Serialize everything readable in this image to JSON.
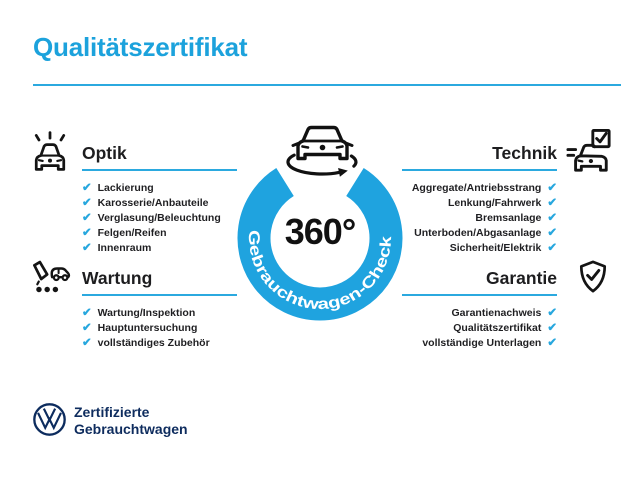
{
  "title": "Qualitätszertifikat",
  "check_glyph": "✔",
  "colors": {
    "accent_blue": "#1CA2DC",
    "ring_blue": "#1FA3DF",
    "rule_blue": "#2BA9DF",
    "dark_navy": "#0E2C5E",
    "icon_black": "#141414"
  },
  "center": {
    "degree_label": "360°",
    "ring_label": "Gebrauchtwagen-Check"
  },
  "sections": {
    "optik": {
      "label": "Optik",
      "items": [
        "Lackierung",
        "Karosserie/Anbauteile",
        "Verglasung/Beleuchtung",
        "Felgen/Reifen",
        "Innenraum"
      ]
    },
    "technik": {
      "label": "Technik",
      "items": [
        "Aggregate/Antriebsstrang",
        "Lenkung/Fahrwerk",
        "Bremsanlage",
        "Unterboden/Abgasanlage",
        "Sicherheit/Elektrik"
      ]
    },
    "wartung": {
      "label": "Wartung",
      "items": [
        "Wartung/Inspektion",
        "Hauptuntersuchung",
        "vollständiges Zubehör"
      ]
    },
    "garantie": {
      "label": "Garantie",
      "items": [
        "Garantienachweis",
        "Qualitätszertifikat",
        "vollständige Unterlagen"
      ]
    }
  },
  "footer": {
    "brand_line1": "Zertifizierte",
    "brand_line2": "Gebrauchtwagen"
  }
}
